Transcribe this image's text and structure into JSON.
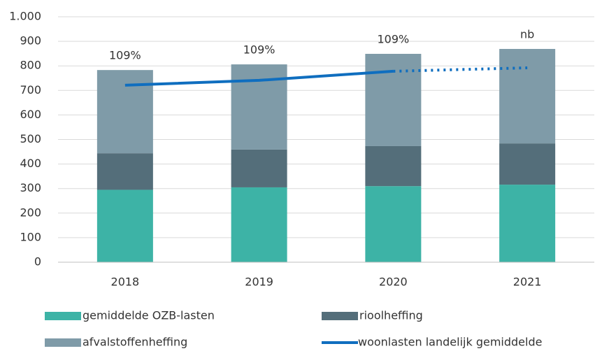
{
  "chart_data": {
    "type": "stacked_bar_line",
    "categories": [
      "2018",
      "2019",
      "2020",
      "2021"
    ],
    "series": [
      {
        "name": "gemiddelde OZB-lasten",
        "color": "#3db3a6",
        "values": [
          295,
          305,
          310,
          316
        ]
      },
      {
        "name": "rioolheffing",
        "color": "#546e7a",
        "values": [
          149,
          154,
          163,
          168
        ]
      },
      {
        "name": "afvalstoffenheffing",
        "color": "#7f9ba8",
        "values": [
          339,
          347,
          376,
          385
        ]
      }
    ],
    "line": {
      "name": "woonlasten landelijk gemiddelde",
      "color": "#0f6ebf",
      "values": [
        721,
        741,
        778,
        792
      ],
      "dotted_from": 2
    },
    "annotations": [
      "109%",
      "109%",
      "109%",
      "nb"
    ],
    "ylim": [
      0,
      1000
    ],
    "yticks": [
      0,
      100,
      200,
      300,
      400,
      500,
      600,
      700,
      800,
      900,
      {
        "value": 1000,
        "label": "1.000"
      }
    ]
  }
}
